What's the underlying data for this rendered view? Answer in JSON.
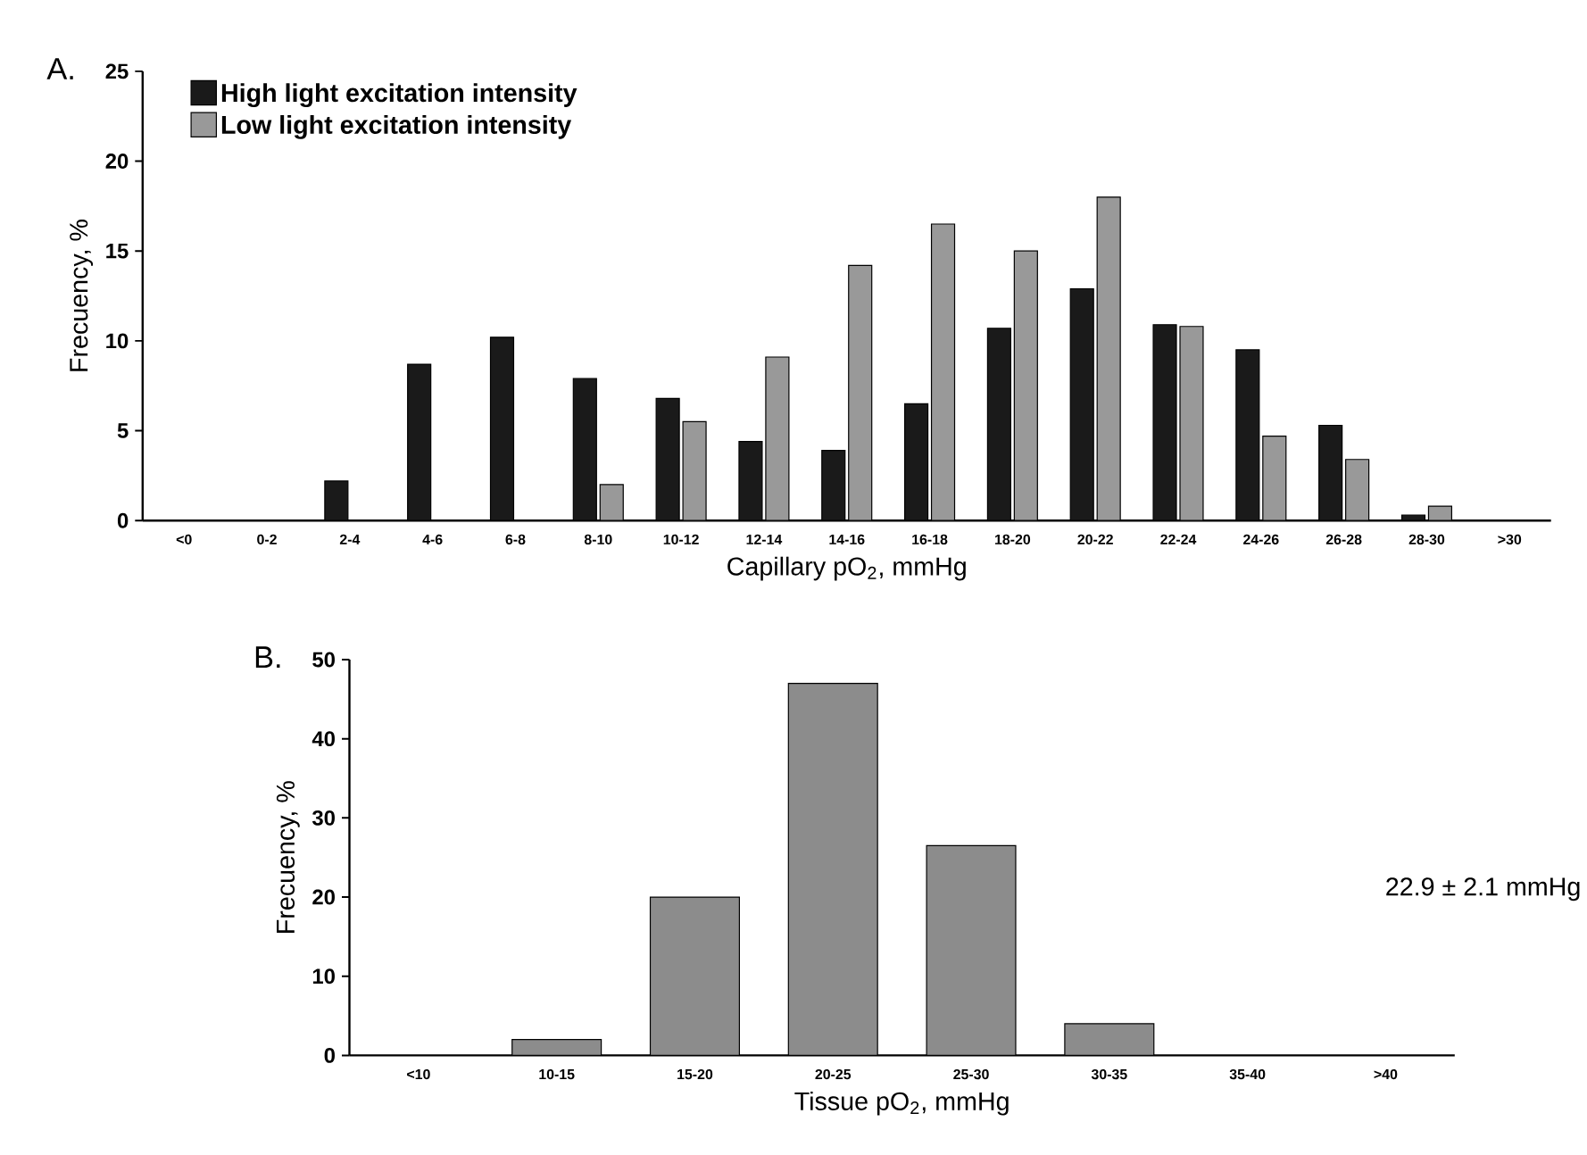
{
  "chart_data": [
    {
      "type": "bar",
      "title": "A.",
      "xlabel": "Capillary pO$_{2}$, mmHg",
      "ylabel": "Frecuency, %",
      "categories": [
        "<0",
        "0-2",
        "2-4",
        "4-6",
        "6-8",
        "8-10",
        "10-12",
        "12-14",
        "14-16",
        "16-18",
        "18-20",
        "20-22",
        "22-24",
        "24-26",
        "26-28",
        "28-30",
        ">30"
      ],
      "series": [
        {
          "name": "High light excitation intensity",
          "color": "#1a1a1a",
          "values": [
            0,
            0,
            2.2,
            8.7,
            10.2,
            7.9,
            6.8,
            4.4,
            3.9,
            6.5,
            10.7,
            12.9,
            10.9,
            9.5,
            5.3,
            0.3,
            0
          ]
        },
        {
          "name": "Low light excitation intensity",
          "color": "#999999",
          "values": [
            0,
            0,
            0,
            0,
            0,
            2.0,
            5.5,
            9.1,
            14.2,
            16.5,
            15.0,
            18.0,
            10.8,
            4.7,
            3.4,
            0.8,
            0
          ]
        }
      ],
      "ylim": [
        0,
        25
      ],
      "yticks": [
        0,
        5,
        10,
        15,
        20,
        25
      ],
      "legend": "top left"
    },
    {
      "type": "bar",
      "title": "B.",
      "xlabel": "Tissue pO$_{2}$, mmHg",
      "ylabel": "Frecuency, %",
      "categories": [
        "<10",
        "10-15",
        "15-20",
        "20-25",
        "25-30",
        "30-35",
        "35-40",
        ">40"
      ],
      "values": [
        0,
        2,
        20,
        47,
        26.5,
        4,
        0,
        0
      ],
      "color": "#8c8c8c",
      "ylim": [
        0,
        50
      ],
      "yticks": [
        0,
        10,
        20,
        30,
        40,
        50
      ],
      "annotations": [
        "22.9 ± 2.1 mmHg"
      ]
    }
  ]
}
